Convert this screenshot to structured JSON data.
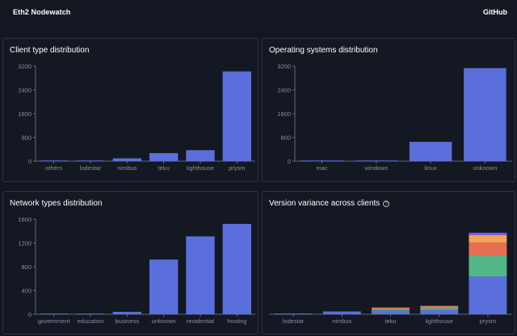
{
  "header": {
    "app_title": "Eth2 Nodewatch",
    "github_label": "GitHub"
  },
  "colors": {
    "background": "#131722",
    "bar": "#5b6fdc",
    "axis_text": "#8a8f9c",
    "axis_line": "#7a7f8c",
    "panel_border": "#2e3341",
    "segment_colors": [
      "#5b6fdc",
      "#52b788",
      "#e76f51",
      "#f4a259",
      "#9b5de5"
    ]
  },
  "panels": [
    {
      "title": "Client type distribution",
      "info_icon": "",
      "chart_data": {
        "type": "bar",
        "categories": [
          "others",
          "lodestar",
          "nimbus",
          "teku",
          "lighthouse",
          "prysm"
        ],
        "values": [
          10,
          15,
          95,
          270,
          370,
          3020
        ],
        "yticks": [
          "0",
          "800",
          "1600",
          "2400",
          "3200"
        ],
        "ylim": [
          0,
          3200
        ]
      }
    },
    {
      "title": "Operating systems distribution",
      "info_icon": "",
      "chart_data": {
        "type": "bar",
        "categories": [
          "mac",
          "windows",
          "linux",
          "unknown"
        ],
        "values": [
          5,
          5,
          650,
          3130
        ],
        "yticks": [
          "0",
          "800",
          "1600",
          "2400",
          "3200"
        ],
        "ylim": [
          0,
          3200
        ]
      }
    },
    {
      "title": "Network types distribution",
      "info_icon": "",
      "chart_data": {
        "type": "bar",
        "categories": [
          "government",
          "education",
          "business",
          "unknown",
          "residential",
          "hosting"
        ],
        "values": [
          3,
          10,
          40,
          920,
          1310,
          1520
        ],
        "yticks": [
          "0",
          "400",
          "800",
          "1200",
          "1600"
        ],
        "ylim": [
          0,
          1600
        ]
      }
    },
    {
      "title": "Version variance across clients",
      "info_icon": "?",
      "chart_data": {
        "type": "bar",
        "stacked": true,
        "categories": [
          "lodestar",
          "nimbus",
          "teku",
          "lighthouse",
          "prysm"
        ],
        "segments": [
          [
            0.008
          ],
          [
            0.03
          ],
          [
            0.04,
            0.015,
            0.008,
            0.008
          ],
          [
            0.045,
            0.02,
            0.01,
            0.01,
            0.005
          ],
          [
            0.405,
            0.22,
            0.14,
            0.08,
            0.015,
            0.012
          ]
        ],
        "ylim": [
          0,
          1
        ]
      }
    }
  ]
}
